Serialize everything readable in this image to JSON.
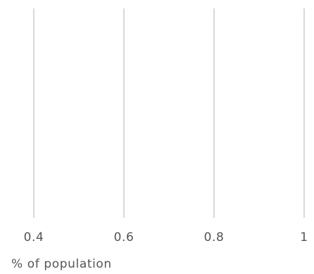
{
  "chart_data": {
    "type": "bar",
    "orientation": "horizontal",
    "x": [
      0.4,
      0.6,
      0.8,
      1
    ],
    "xticks": [
      "0.4",
      "0.6",
      "0.8",
      "1"
    ],
    "xlabel": "% of population",
    "ylabel": "",
    "title": "",
    "categories": [],
    "series": [],
    "xlim": [
      0.4,
      1
    ],
    "grid": "vertical",
    "legend": "none"
  }
}
